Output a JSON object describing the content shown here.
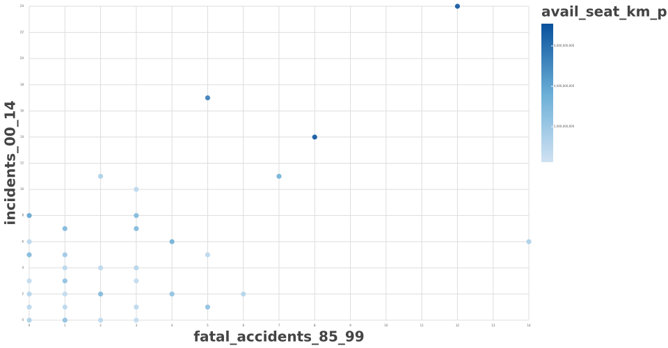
{
  "chart_data": {
    "type": "scatter",
    "x_label": "fatal_accidents_85_99",
    "y_label": "incidents_00_14",
    "color_label": "avail_seat_km_p...",
    "x": [
      12,
      5,
      8,
      7,
      2,
      3,
      0,
      3,
      1,
      3,
      0,
      4,
      14,
      0,
      1,
      5,
      1,
      2,
      3,
      0,
      1,
      3,
      0,
      1,
      2,
      4,
      6,
      0,
      1,
      3,
      5,
      0,
      1,
      2,
      3
    ],
    "y": [
      24,
      17,
      14,
      11,
      11,
      10,
      8,
      8,
      7,
      7,
      6,
      6,
      6,
      5,
      5,
      5,
      4,
      4,
      4,
      3,
      3,
      3,
      2,
      2,
      2,
      2,
      2,
      1,
      1,
      1,
      1,
      0,
      0,
      0,
      0
    ],
    "c": [
      7000000000,
      5500000000,
      7000000000,
      3500000000,
      1500000000,
      1000000000,
      4000000000,
      3000000000,
      3000000000,
      3000000000,
      1000000000,
      3500000000,
      1500000000,
      3000000000,
      2000000000,
      1000000000,
      1000000000,
      1000000000,
      1200000000,
      800000000,
      2500000000,
      800000000,
      1200000000,
      800000000,
      3000000000,
      2500000000,
      1200000000,
      1000000000,
      1000000000,
      1000000000,
      2500000000,
      1500000000,
      2500000000,
      1000000000,
      800000000
    ],
    "xlim": [
      0,
      14
    ],
    "xticks": [
      0,
      1,
      2,
      3,
      4,
      5,
      6,
      7,
      8,
      9,
      10,
      11,
      12,
      13,
      14
    ],
    "ylim": [
      0,
      24
    ],
    "yticks": [
      0,
      2,
      4,
      6,
      8,
      10,
      12,
      14,
      16,
      18,
      20,
      22,
      24
    ],
    "clim": [
      250000000,
      7100000000
    ],
    "cticks": [
      {
        "value": 2000000000,
        "label": "2,000,000,000"
      },
      {
        "value": 4000000000,
        "label": "4,000,000,000"
      },
      {
        "value": 6000000000,
        "label": "6,000,000,000"
      }
    ],
    "colorscale": [
      "#d0e2f3",
      "#6aaed6",
      "#08519c"
    ],
    "grid": true
  }
}
